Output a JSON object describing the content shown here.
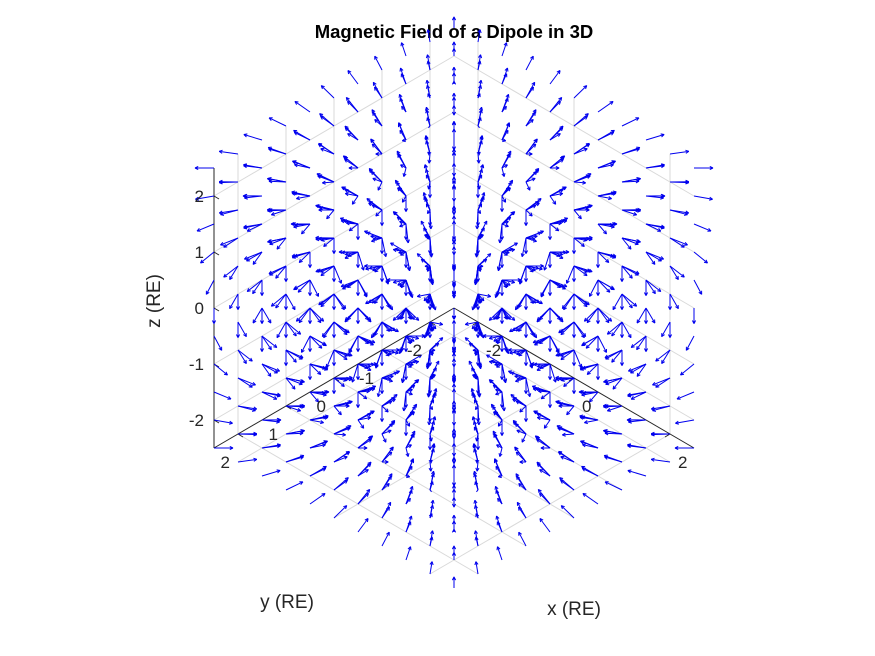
{
  "chart_data": {
    "type": "quiver3",
    "title": "Magnetic Field of a Dipole in 3D",
    "xlabel": "x (RE)",
    "ylabel": "y (RE)",
    "zlabel": "z (RE)",
    "xlim": [
      -2.5,
      2.5
    ],
    "ylim": [
      -2.5,
      2.5
    ],
    "zlim": [
      -2.5,
      2.5
    ],
    "xticks": [
      {
        "value": -2,
        "label": "-2"
      },
      {
        "value": 0,
        "label": "0"
      },
      {
        "value": 2,
        "label": "2"
      }
    ],
    "yticks": [
      {
        "value": -2,
        "label": "-2"
      },
      {
        "value": -1,
        "label": "-1"
      },
      {
        "value": 0,
        "label": "0"
      },
      {
        "value": 1,
        "label": "1"
      },
      {
        "value": 2,
        "label": "2"
      }
    ],
    "zticks": [
      {
        "value": -2,
        "label": "-2"
      },
      {
        "value": -1,
        "label": "-1"
      },
      {
        "value": 0,
        "label": "0"
      },
      {
        "value": 1,
        "label": "1"
      },
      {
        "value": 2,
        "label": "2"
      }
    ],
    "grid": true,
    "box": false,
    "view": {
      "azimuth": 45,
      "elevation": 35.26
    },
    "field": {
      "model": "magnetic dipole, moment along z",
      "grid_min": -2.5,
      "grid_max": 2.5,
      "grid_step": 0.5,
      "direction_only": true
    },
    "colors": {
      "arrow": "#0000ee",
      "grid": "#d9d9d9",
      "axis": "#262626",
      "text": "#262626"
    }
  }
}
